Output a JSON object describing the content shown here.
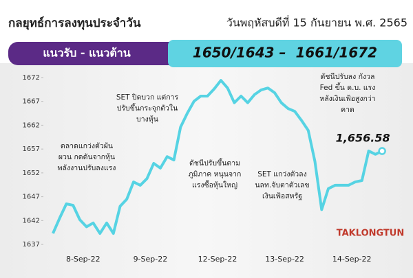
{
  "chart_data": {
    "type": "line",
    "title": "กลยุทธ์การลงทุนประจำวัน",
    "date": "วันพฤหัสบดีที่ 15 กันยายน พ.ศ. 2565",
    "band_label": "แนวรับ - แนวต้าน",
    "band_values": "1650/1643 –  1661/1672",
    "categories": [
      "8-Sep-22",
      "9-Sep-22",
      "12-Sep-22",
      "13-Sep-22",
      "14-Sep-22"
    ],
    "series": [
      {
        "color": "#56d3e3",
        "values": [
          [
            1639.3,
            1642.5,
            1645.5,
            1645.2,
            1642.2,
            1640.7,
            1641.5,
            1639.3,
            1641.5,
            1639.3
          ],
          [
            1645,
            1646.5,
            1650.1,
            1649.4,
            1650.8,
            1654,
            1653,
            1655.4,
            1654.7,
            1661.6
          ],
          [
            1664.5,
            1667,
            1668.1,
            1668.1,
            1669.6,
            1671.4,
            1669.8,
            1666.7,
            1668.1,
            1666.7
          ],
          [
            1668.4,
            1669.4,
            1669.8,
            1668.8,
            1666.7,
            1665.5,
            1664.9,
            1663,
            1660.9,
            1654.4
          ],
          [
            1644.3,
            1648.7,
            1649.4,
            1649.4,
            1649.4,
            1650.1,
            1650.4,
            1656.6,
            1655.9,
            1656.58
          ]
        ]
      }
    ],
    "callout": {
      "value": 1656.58,
      "label": "1,656.58"
    },
    "ylim": [
      1635,
      1674
    ],
    "yticks": [
      1637,
      1642,
      1647,
      1652,
      1657,
      1662,
      1667,
      1672
    ],
    "annotations": [
      [
        "ตลาดแกว่งตัวผัน",
        "ผวน กดดันจากหุ้น",
        "พลังงานปรับลงแรง"
      ],
      [
        "SET ปิดบวก แต่การ",
        "ปรับขึ้นกระจุกตัวใน",
        "บางหุ้น"
      ],
      [
        "ดัชนีปรับขึ้นตาม",
        "ภูมิภาค หนุนจาก",
        "แรงซื้อหุ้นใหญ่"
      ],
      [
        "SET แกว่งตัวลง",
        "นลท.จับตาตัวเลข",
        "เงินเฟ้อสหรัฐ"
      ],
      [
        "ดัชนีปรับลง กังวล",
        "Fed ขึ้น ด.บ. แรง",
        "หลังเงินเฟ้อสูงกว่า",
        "คาด"
      ]
    ],
    "logo": "TAKLONGTUN"
  }
}
